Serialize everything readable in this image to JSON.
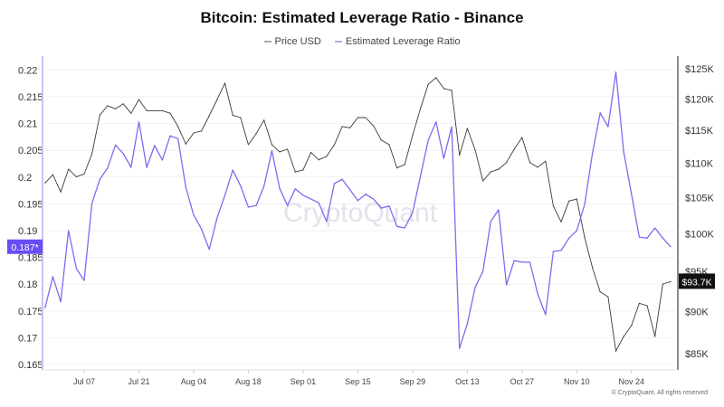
{
  "chart_data": {
    "type": "line",
    "title": "Bitcoin: Estimated Leverage Ratio - Binance",
    "x": [
      "2025-06-27",
      "2025-06-29",
      "2025-07-01",
      "2025-07-03",
      "2025-07-05",
      "2025-07-07",
      "2025-07-09",
      "2025-07-11",
      "2025-07-13",
      "2025-07-15",
      "2025-07-17",
      "2025-07-19",
      "2025-07-21",
      "2025-07-23",
      "2025-07-25",
      "2025-07-27",
      "2025-07-29",
      "2025-07-31",
      "2025-08-02",
      "2025-08-04",
      "2025-08-06",
      "2025-08-08",
      "2025-08-10",
      "2025-08-12",
      "2025-08-14",
      "2025-08-16",
      "2025-08-18",
      "2025-08-20",
      "2025-08-22",
      "2025-08-24",
      "2025-08-26",
      "2025-08-28",
      "2025-08-30",
      "2025-09-01",
      "2025-09-03",
      "2025-09-05",
      "2025-09-07",
      "2025-09-09",
      "2025-09-11",
      "2025-09-13",
      "2025-09-15",
      "2025-09-17",
      "2025-09-19",
      "2025-09-21",
      "2025-09-23",
      "2025-09-25",
      "2025-09-27",
      "2025-09-29",
      "2025-10-01",
      "2025-10-03",
      "2025-10-05",
      "2025-10-07",
      "2025-10-09",
      "2025-10-11",
      "2025-10-13",
      "2025-10-15",
      "2025-10-17",
      "2025-10-19",
      "2025-10-21",
      "2025-10-23",
      "2025-10-25",
      "2025-10-27",
      "2025-10-29",
      "2025-10-31",
      "2025-11-02",
      "2025-11-04",
      "2025-11-06",
      "2025-11-08",
      "2025-11-10",
      "2025-11-12",
      "2025-11-14",
      "2025-11-16",
      "2025-11-18",
      "2025-11-20",
      "2025-11-22",
      "2025-11-24",
      "2025-11-26",
      "2025-11-28",
      "2025-11-30",
      "2025-12-02",
      "2025-12-04"
    ],
    "series": [
      {
        "name": "Price USD",
        "axis": "right",
        "color": "#3a3a3a",
        "values": [
          107100,
          108300,
          105800,
          109100,
          108000,
          108400,
          111400,
          117400,
          118900,
          118400,
          119200,
          117700,
          119900,
          118100,
          118100,
          118100,
          117700,
          115600,
          112900,
          114600,
          114900,
          117300,
          119900,
          122600,
          117400,
          117000,
          112800,
          114500,
          116600,
          112800,
          111700,
          112100,
          108700,
          109000,
          111600,
          110500,
          111000,
          112800,
          115600,
          115400,
          117000,
          117000,
          115700,
          113500,
          112800,
          109300,
          109800,
          114200,
          118400,
          122400,
          123500,
          121700,
          121400,
          111200,
          115300,
          112000,
          107400,
          108700,
          109100,
          110100,
          112100,
          113900,
          110100,
          109400,
          110300,
          103800,
          101600,
          104500,
          104800,
          99500,
          95500,
          92400,
          91800,
          85300,
          87000,
          88300,
          91000,
          90700,
          87000,
          93400,
          93700
        ]
      },
      {
        "name": "Estimated Leverage Ratio",
        "axis": "left",
        "color": "#7b6cf0",
        "values": [
          0.1756,
          0.1814,
          0.1767,
          0.19,
          0.1829,
          0.1807,
          0.1951,
          0.1996,
          0.2017,
          0.206,
          0.2044,
          0.2018,
          0.2103,
          0.2018,
          0.2059,
          0.2032,
          0.2077,
          0.2072,
          0.1981,
          0.1929,
          0.1903,
          0.1865,
          0.1924,
          0.1966,
          0.2013,
          0.1984,
          0.1944,
          0.1947,
          0.1983,
          0.2049,
          0.1979,
          0.1947,
          0.1978,
          0.1966,
          0.1959,
          0.1952,
          0.1917,
          0.1988,
          0.1996,
          0.1976,
          0.1956,
          0.1968,
          0.1959,
          0.1942,
          0.1946,
          0.1908,
          0.1905,
          0.1934,
          0.2001,
          0.2069,
          0.2103,
          0.2035,
          0.2094,
          0.168,
          0.1726,
          0.1794,
          0.1824,
          0.1917,
          0.1939,
          0.1799,
          0.1844,
          0.1841,
          0.1841,
          0.1782,
          0.1743,
          0.1861,
          0.1863,
          0.1886,
          0.19,
          0.1949,
          0.2044,
          0.212,
          0.2094,
          0.2196,
          0.2047,
          0.1968,
          0.1888,
          0.1886,
          0.1905,
          0.1886,
          0.187
        ]
      }
    ],
    "x_ticks": [
      {
        "date": "2025-07-07",
        "label": "Jul 07"
      },
      {
        "date": "2025-07-21",
        "label": "Jul 21"
      },
      {
        "date": "2025-08-04",
        "label": "Aug 04"
      },
      {
        "date": "2025-08-18",
        "label": "Aug 18"
      },
      {
        "date": "2025-09-01",
        "label": "Sep 01"
      },
      {
        "date": "2025-09-15",
        "label": "Sep 15"
      },
      {
        "date": "2025-09-29",
        "label": "Sep 29"
      },
      {
        "date": "2025-10-13",
        "label": "Oct 13"
      },
      {
        "date": "2025-10-27",
        "label": "Oct 27"
      },
      {
        "date": "2025-11-10",
        "label": "Nov 10"
      },
      {
        "date": "2025-11-24",
        "label": "Nov 24"
      }
    ],
    "left_axis": {
      "scale": "linear",
      "ylim": [
        0.165,
        0.22
      ],
      "ticks": [
        {
          "value": 0.22,
          "label": "0.22"
        },
        {
          "value": 0.215,
          "label": "0.215"
        },
        {
          "value": 0.21,
          "label": "0.21"
        },
        {
          "value": 0.205,
          "label": "0.205"
        },
        {
          "value": 0.2,
          "label": "0.2"
        },
        {
          "value": 0.195,
          "label": "0.195"
        },
        {
          "value": 0.19,
          "label": "0.19"
        },
        {
          "value": 0.185,
          "label": "0.185"
        },
        {
          "value": 0.18,
          "label": "0.18"
        },
        {
          "value": 0.175,
          "label": "0.175"
        },
        {
          "value": 0.17,
          "label": "0.17"
        },
        {
          "value": 0.165,
          "label": "0.165"
        }
      ],
      "current_label": "0.187*",
      "current_value": 0.187,
      "color": "#6a4cf5"
    },
    "right_axis": {
      "scale": "log",
      "ylim": [
        85000,
        125000
      ],
      "ticks": [
        {
          "value": 125000,
          "label": "$125K"
        },
        {
          "value": 120000,
          "label": "$120K"
        },
        {
          "value": 115000,
          "label": "$115K"
        },
        {
          "value": 110000,
          "label": "$110K"
        },
        {
          "value": 105000,
          "label": "$105K"
        },
        {
          "value": 100000,
          "label": "$100K"
        },
        {
          "value": 95000,
          "label": "$95K"
        },
        {
          "value": 90000,
          "label": "$90K"
        },
        {
          "value": 85000,
          "label": "$85K"
        }
      ],
      "current_label": "$93.7K",
      "current_value": 93700,
      "color": "#111111"
    },
    "grid": true,
    "legend_position": "top-center"
  },
  "watermark": "CryptoQuant",
  "copyright": "© CryptoQuant. All rights reserved"
}
